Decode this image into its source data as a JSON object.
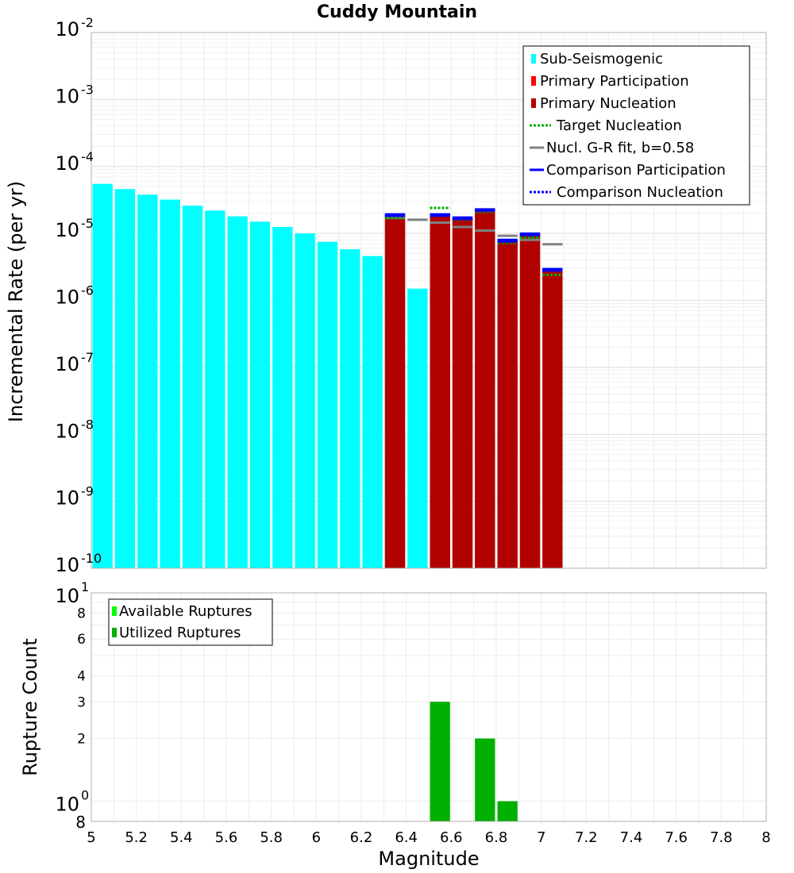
{
  "chart_data": [
    {
      "type": "bar",
      "title": "Cuddy Mountain",
      "xlabel": "",
      "ylabel": "Incremental Rate (per yr)",
      "yscale": "log",
      "ylim": [
        1e-10,
        0.01
      ],
      "xlim": [
        5,
        8
      ],
      "bar_width": 0.1,
      "y_tick_exponents": [
        "-2",
        "-3",
        "-4",
        "-5",
        "-6",
        "-7",
        "-8",
        "-9",
        "-10"
      ],
      "y_tick_base": "10",
      "legend_position": "top-right",
      "legend": [
        {
          "label": "Sub-Seismogenic",
          "color": "#00ffff",
          "style": "bar"
        },
        {
          "label": "Primary Participation",
          "color": "#ff0000",
          "style": "bar"
        },
        {
          "label": "Primary Nucleation",
          "color": "#b00000",
          "style": "bar"
        },
        {
          "label": "Target Nucleation",
          "color": "#00b000",
          "style": "dotted"
        },
        {
          "label": "Nucl. G-R fit, b=0.58",
          "color": "#808080",
          "style": "solid"
        },
        {
          "label": "Comparison Participation",
          "color": "#0000ff",
          "style": "solid"
        },
        {
          "label": "Comparison Nucleation",
          "color": "#0000ff",
          "style": "dotted"
        }
      ],
      "series": [
        {
          "name": "Sub-Seismogenic",
          "color": "#00ffff",
          "x": [
            5.05,
            5.15,
            5.25,
            5.35,
            5.45,
            5.55,
            5.65,
            5.75,
            5.85,
            5.95,
            6.05,
            6.15,
            6.25,
            6.45
          ],
          "values": [
            5.5e-05,
            4.6e-05,
            3.8e-05,
            3.2e-05,
            2.6e-05,
            2.2e-05,
            1.8e-05,
            1.5e-05,
            1.25e-05,
            1e-05,
            7.5e-06,
            5.8e-06,
            4.6e-06,
            1.5e-06
          ]
        },
        {
          "name": "Primary Participation",
          "color": "#ff0000",
          "x": [
            6.35,
            6.55,
            6.65,
            6.75,
            6.85,
            6.95,
            7.05
          ],
          "values": [
            1.9e-05,
            1.9e-05,
            1.7e-05,
            2.25e-05,
            7.9e-06,
            9.8e-06,
            2.9e-06
          ]
        },
        {
          "name": "Primary Nucleation",
          "color": "#b00000",
          "x": [
            6.35,
            6.55,
            6.65,
            6.75,
            6.85,
            6.95,
            7.05
          ],
          "values": [
            1.8e-05,
            1.85e-05,
            1.65e-05,
            2.2e-05,
            7.5e-06,
            9.3e-06,
            2.7e-06
          ]
        },
        {
          "name": "Target Nucleation",
          "color": "#00b000",
          "x": [
            6.35,
            6.55,
            6.65,
            6.75,
            6.85,
            6.95,
            7.05
          ],
          "values": [
            1.7e-05,
            2.4e-05,
            1.6e-05,
            2.1e-05,
            7.2e-06,
            8.6e-06,
            2.4e-06
          ]
        },
        {
          "name": "Nucl. G-R fit, b=0.58",
          "color": "#808080",
          "x": [
            6.35,
            6.45,
            6.55,
            6.65,
            6.75,
            6.85,
            6.95,
            7.05
          ],
          "values": [
            1.7e-05,
            1.6e-05,
            1.45e-05,
            1.25e-05,
            1.1e-05,
            9.2e-06,
            8e-06,
            6.9e-06
          ]
        },
        {
          "name": "Comparison Participation",
          "color": "#0000ff",
          "x": [
            6.35,
            6.55,
            6.65,
            6.75,
            6.85,
            6.95,
            7.05
          ],
          "values": [
            1.9e-05,
            1.9e-05,
            1.7e-05,
            2.25e-05,
            7.9e-06,
            9.8e-06,
            2.9e-06
          ]
        },
        {
          "name": "Comparison Nucleation",
          "color": "#0000ff",
          "x": [
            6.35,
            6.55,
            6.65,
            6.75,
            6.85,
            6.95,
            7.05
          ],
          "values": [
            1.85e-05,
            1.85e-05,
            1.65e-05,
            2.2e-05,
            7.6e-06,
            9.5e-06,
            2.8e-06
          ]
        }
      ]
    },
    {
      "type": "bar",
      "title": "",
      "xlabel": "Magnitude",
      "ylabel": "Rupture Count",
      "yscale": "log",
      "ylim": [
        0.8,
        10
      ],
      "xlim": [
        5,
        8
      ],
      "bar_width": 0.1,
      "x_ticks": [
        "5",
        "5.2",
        "5.4",
        "5.6",
        "5.8",
        "6",
        "6.2",
        "6.4",
        "6.6",
        "6.8",
        "7",
        "7.2",
        "7.4",
        "7.6",
        "7.8",
        "8"
      ],
      "y_tick_labels": [
        "8",
        "6",
        "4",
        "3",
        "2"
      ],
      "y_tick_values": [
        8,
        6,
        4,
        3,
        2
      ],
      "y_minor_label_bottom": "8",
      "y_tick_base": "10",
      "y_tick_exponents": [
        "1",
        "0"
      ],
      "legend_position": "top-left",
      "legend": [
        {
          "label": "Available Ruptures",
          "color": "#00ff00",
          "style": "bar"
        },
        {
          "label": "Utilized Ruptures",
          "color": "#00b000",
          "style": "bar"
        }
      ],
      "series": [
        {
          "name": "Utilized Ruptures",
          "color": "#00b000",
          "x": [
            6.55,
            6.75,
            6.85
          ],
          "values": [
            3,
            2,
            1
          ]
        }
      ]
    }
  ]
}
